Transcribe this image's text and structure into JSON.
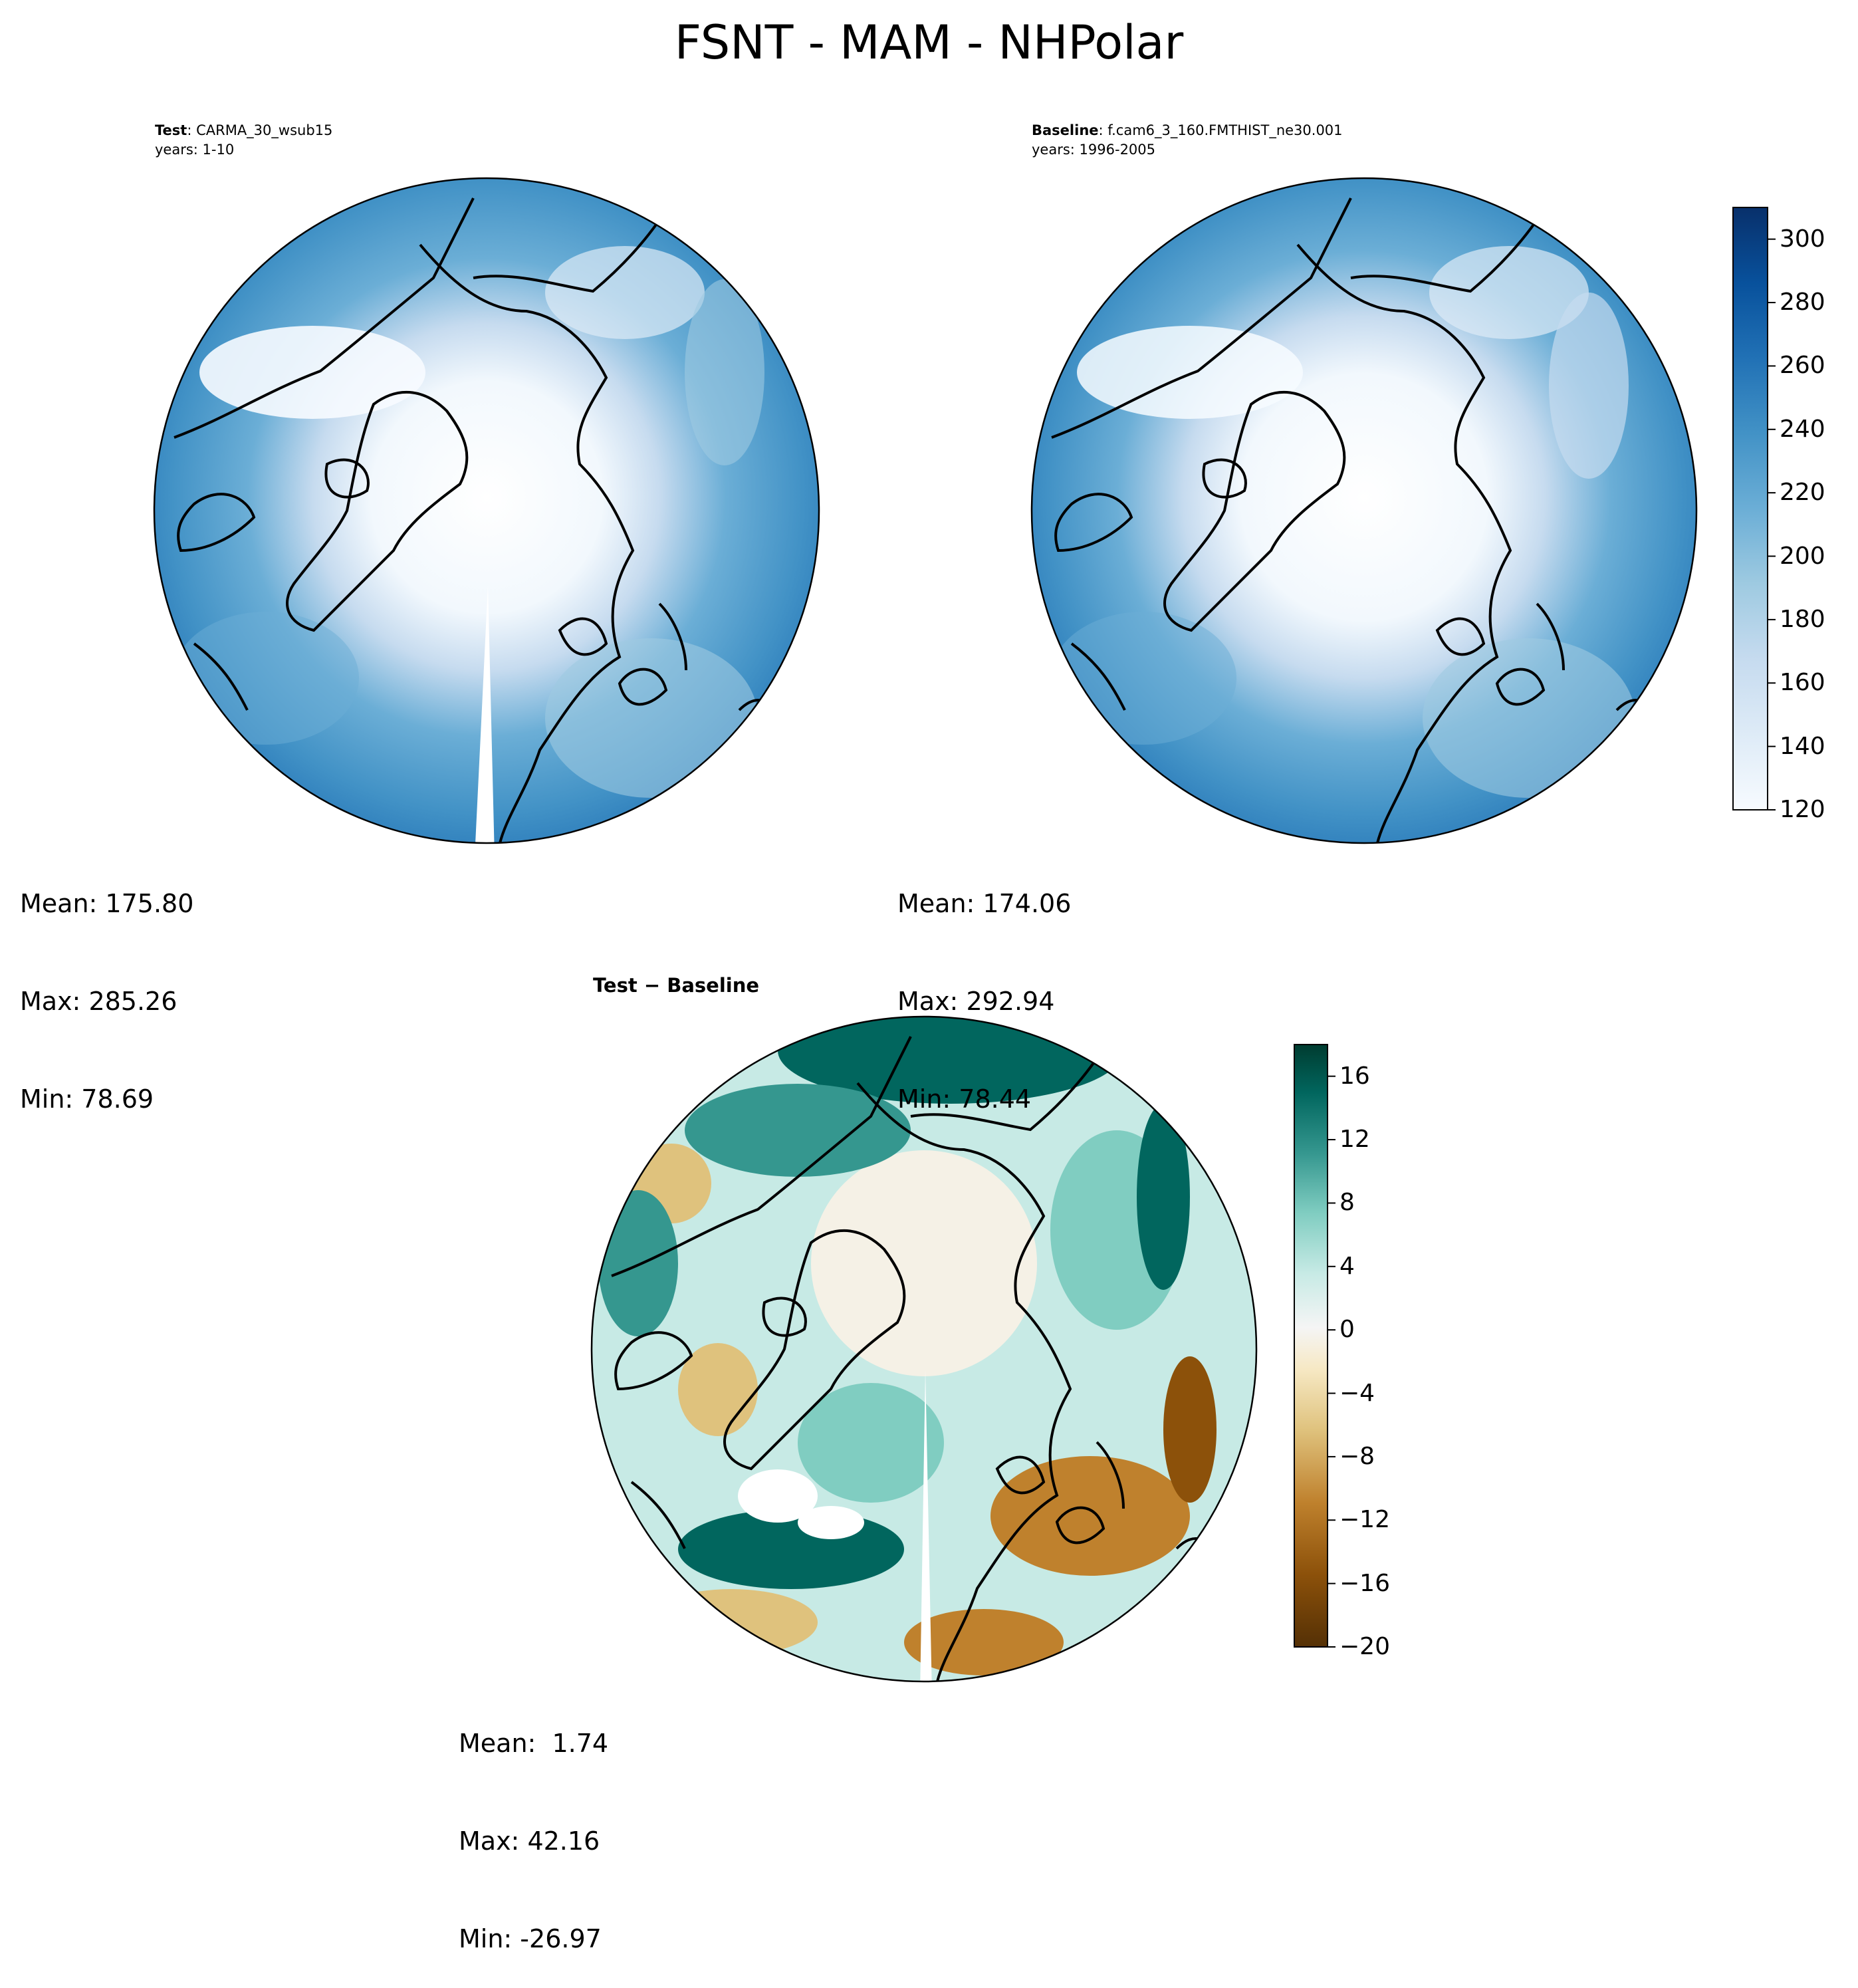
{
  "title": "FSNT - MAM - NHPolar",
  "panels": [
    {
      "label_bold": "Test",
      "label_rest": ": CARMA_30_wsub15",
      "years": "years: 1-10",
      "stats": {
        "mean": "Mean: 175.80",
        "max": "Max: 285.26",
        "min": "Min: 78.69"
      }
    },
    {
      "label_bold": "Baseline",
      "label_rest": ": f.cam6_3_160.FMTHIST_ne30.001",
      "years": "years: 1996-2005",
      "stats": {
        "mean": "Mean: 174.06",
        "max": "Max: 292.94",
        "min": "Min: 78.44"
      }
    },
    {
      "label_bold": "Test − Baseline",
      "label_rest": "",
      "years": "",
      "stats": {
        "mean": "Mean:  1.74",
        "max": "Max: 42.16",
        "min": "Min: -26.97"
      }
    }
  ],
  "colorbar_abs": {
    "ticks": [
      "120",
      "140",
      "160",
      "180",
      "200",
      "220",
      "240",
      "260",
      "280",
      "300"
    ],
    "range": [
      120,
      310
    ],
    "colors": [
      "#f7fbff",
      "#deebf7",
      "#c6dbef",
      "#9ecae1",
      "#6baed6",
      "#4292c6",
      "#2171b5",
      "#08519c",
      "#08306b"
    ]
  },
  "colorbar_diff": {
    "ticks": [
      "−20",
      "−16",
      "−12",
      "−8",
      "−4",
      "0",
      "4",
      "8",
      "12",
      "16"
    ],
    "range": [
      -20,
      18
    ],
    "colors": [
      "#543005",
      "#8c510a",
      "#bf812d",
      "#dfc27d",
      "#f6e8c3",
      "#f5f5f5",
      "#c7eae5",
      "#80cdc1",
      "#35978f",
      "#01665e",
      "#003c30"
    ]
  }
}
